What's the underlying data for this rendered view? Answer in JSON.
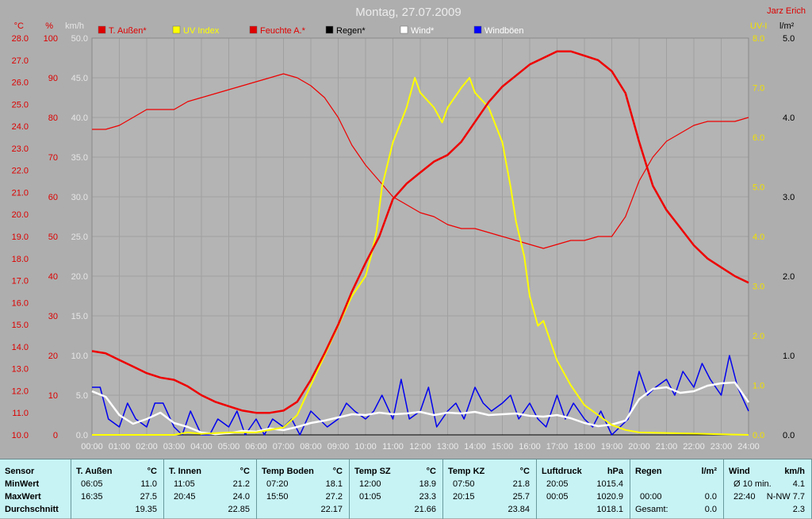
{
  "header": {
    "title": "Montag, 27.07.2009",
    "author": "Jarz Erich"
  },
  "axes": {
    "temp": {
      "unit": "°C",
      "ticks": [
        "28.0",
        "27.0",
        "26.0",
        "25.0",
        "24.0",
        "23.0",
        "22.0",
        "21.0",
        "20.0",
        "19.0",
        "18.0",
        "17.0",
        "16.0",
        "15.0",
        "14.0",
        "13.0",
        "12.0",
        "11.0",
        "10.0"
      ],
      "min": 10,
      "max": 28
    },
    "humidity": {
      "unit": "%",
      "ticks": [
        "100",
        "90",
        "80",
        "70",
        "60",
        "50",
        "40",
        "30",
        "20",
        "10",
        "0"
      ],
      "min": 0,
      "max": 100
    },
    "wind": {
      "unit": "km/h",
      "ticks": [
        "50.0",
        "45.0",
        "40.0",
        "35.0",
        "30.0",
        "25.0",
        "20.0",
        "15.0",
        "10.0",
        "5.0",
        "0.0"
      ],
      "min": 0,
      "max": 50
    },
    "uv": {
      "unit": "UV-I",
      "ticks": [
        "8.0",
        "7.0",
        "6.0",
        "5.0",
        "4.0",
        "3.0",
        "2.0",
        "1.0",
        "0.0"
      ],
      "min": 0,
      "max": 8
    },
    "rain": {
      "unit": "l/m²",
      "ticks": [
        "5.0",
        "4.0",
        "3.0",
        "2.0",
        "1.0",
        "0.0"
      ],
      "min": 0,
      "max": 5
    },
    "time_ticks": [
      "00:00",
      "01:00",
      "02:00",
      "03:00",
      "04:00",
      "05:00",
      "06:00",
      "07:00",
      "08:00",
      "09:00",
      "10:00",
      "11:00",
      "12:00",
      "13:00",
      "14:00",
      "15:00",
      "16:00",
      "17:00",
      "18:00",
      "19:00",
      "20:00",
      "21:00",
      "22:00",
      "23:00",
      "24:00"
    ]
  },
  "legend": [
    {
      "label": "T. Außen*",
      "color": "#e00000"
    },
    {
      "label": "UV Index",
      "color": "#ffff00"
    },
    {
      "label": "Feuchte A.*",
      "color": "#e00000"
    },
    {
      "label": "Regen*",
      "color": "#000000"
    },
    {
      "label": "Wind*",
      "color": "#ffffff"
    },
    {
      "label": "Windböen",
      "color": "#0000ff"
    }
  ],
  "colors": {
    "temp": "#ee0000",
    "humidity": "#ee0000",
    "uv": "#ffff00",
    "wind": "#ffffff",
    "gusts": "#0000ee",
    "rain": "#000000",
    "grid": "#a0a0a0",
    "plot_bg": "#b4b4b4"
  },
  "chart_data": {
    "type": "line",
    "x_unit": "hours",
    "xlim": [
      0,
      24
    ],
    "series": [
      {
        "name": "T. Außen*",
        "axis": "temp",
        "x": [
          0,
          0.5,
          1,
          1.5,
          2,
          2.5,
          3,
          3.5,
          4,
          4.5,
          5,
          5.5,
          6,
          6.5,
          7,
          7.5,
          8,
          8.5,
          9,
          9.5,
          10,
          10.5,
          11,
          11.5,
          12,
          12.5,
          13,
          13.5,
          14,
          14.5,
          15,
          15.5,
          16,
          16.5,
          17,
          17.5,
          18,
          18.5,
          19,
          19.5,
          20,
          20.5,
          21,
          21.5,
          22,
          22.5,
          23,
          23.5,
          24
        ],
        "y": [
          13.8,
          13.7,
          13.4,
          13.1,
          12.8,
          12.6,
          12.5,
          12.2,
          11.8,
          11.5,
          11.3,
          11.1,
          11.0,
          11.0,
          11.1,
          11.5,
          12.5,
          13.7,
          15.0,
          16.5,
          17.8,
          19.0,
          20.7,
          21.4,
          21.9,
          22.4,
          22.7,
          23.3,
          24.2,
          25.1,
          25.8,
          26.3,
          26.8,
          27.1,
          27.4,
          27.4,
          27.2,
          27.0,
          26.5,
          25.5,
          23.3,
          21.3,
          20.2,
          19.4,
          18.6,
          18.0,
          17.6,
          17.2,
          16.9
        ]
      },
      {
        "name": "Feuchte A.*",
        "axis": "humidity",
        "x": [
          0,
          0.5,
          1,
          1.5,
          2,
          2.5,
          3,
          3.5,
          4,
          4.5,
          5,
          5.5,
          6,
          6.5,
          7,
          7.5,
          8,
          8.5,
          9,
          9.5,
          10,
          10.5,
          11,
          11.5,
          12,
          12.5,
          13,
          13.5,
          14,
          14.5,
          15,
          15.5,
          16,
          16.5,
          17,
          17.5,
          18,
          18.5,
          19,
          19.5,
          20,
          20.5,
          21,
          21.5,
          22,
          22.5,
          23,
          23.5,
          24
        ],
        "y": [
          77,
          77,
          78,
          80,
          82,
          82,
          82,
          84,
          85,
          86,
          87,
          88,
          89,
          90,
          91,
          90,
          88,
          85,
          80,
          73,
          68,
          64,
          60,
          58,
          56,
          55,
          53,
          52,
          52,
          51,
          50,
          49,
          48,
          47,
          48,
          49,
          49,
          50,
          50,
          55,
          64,
          70,
          74,
          76,
          78,
          79,
          79,
          79,
          80
        ]
      },
      {
        "name": "UV Index",
        "axis": "uv",
        "x": [
          0,
          1,
          2,
          3,
          3.5,
          4,
          5,
          6,
          7,
          7.5,
          8,
          8.5,
          9,
          9.5,
          10,
          10.2,
          10.4,
          10.6,
          11,
          11.5,
          11.8,
          12,
          12.5,
          12.8,
          13,
          13.5,
          13.8,
          14,
          14.5,
          15,
          15.3,
          15.5,
          15.8,
          16,
          16.3,
          16.5,
          17,
          17.5,
          18,
          18.5,
          19,
          19.5,
          20,
          24
        ],
        "y": [
          0,
          0,
          0,
          0,
          0.05,
          0.02,
          0.05,
          0.05,
          0.15,
          0.4,
          1.0,
          1.6,
          2.2,
          2.8,
          3.2,
          3.6,
          4.1,
          5.0,
          5.9,
          6.6,
          7.2,
          6.9,
          6.6,
          6.3,
          6.6,
          7.0,
          7.2,
          6.9,
          6.6,
          5.9,
          5.0,
          4.3,
          3.6,
          2.8,
          2.2,
          2.3,
          1.5,
          1.0,
          0.6,
          0.4,
          0.2,
          0.1,
          0.05,
          0
        ]
      },
      {
        "name": "Wind*",
        "axis": "wind",
        "x": [
          0,
          0.5,
          1,
          1.5,
          2,
          2.5,
          3,
          3.5,
          4,
          4.5,
          5,
          5.5,
          6,
          6.5,
          7,
          7.5,
          8,
          8.5,
          9,
          9.5,
          10,
          10.5,
          11,
          11.5,
          12,
          12.5,
          13,
          13.5,
          14,
          14.5,
          15,
          15.5,
          16,
          16.5,
          17,
          17.5,
          18,
          18.5,
          19,
          19.5,
          20,
          20.5,
          21,
          21.5,
          22,
          22.5,
          23,
          23.5,
          24
        ],
        "y": [
          5.5,
          4.8,
          2.5,
          1.4,
          2.0,
          2.8,
          1.5,
          1.0,
          0.3,
          0.1,
          0.2,
          0.5,
          0.4,
          0.8,
          0.6,
          1.0,
          1.5,
          1.8,
          2.2,
          2.6,
          2.5,
          2.8,
          2.6,
          2.7,
          2.9,
          2.5,
          2.8,
          2.7,
          2.9,
          2.5,
          2.6,
          2.7,
          2.4,
          2.3,
          2.5,
          2.1,
          1.5,
          1.1,
          1.3,
          1.8,
          4.5,
          5.8,
          6.0,
          5.3,
          5.5,
          6.2,
          6.5,
          6.6,
          4.1
        ]
      },
      {
        "name": "Windböen",
        "axis": "wind",
        "x": [
          0,
          0.3,
          0.6,
          1,
          1.3,
          1.6,
          2,
          2.3,
          2.6,
          3,
          3.3,
          3.6,
          4,
          4.3,
          4.6,
          5,
          5.3,
          5.6,
          6,
          6.3,
          6.6,
          7,
          7.3,
          7.6,
          8,
          8.3,
          8.6,
          9,
          9.3,
          9.6,
          10,
          10.3,
          10.6,
          11,
          11.3,
          11.6,
          12,
          12.3,
          12.6,
          13,
          13.3,
          13.6,
          14,
          14.3,
          14.6,
          15,
          15.3,
          15.6,
          16,
          16.3,
          16.6,
          17,
          17.3,
          17.6,
          18,
          18.3,
          18.6,
          19,
          19.3,
          19.6,
          20,
          20.3,
          20.6,
          21,
          21.3,
          21.6,
          22,
          22.3,
          22.6,
          23,
          23.3,
          23.6,
          24
        ],
        "y": [
          6,
          6,
          2,
          1,
          4,
          2,
          1,
          4,
          4,
          1,
          0,
          3,
          0,
          0,
          2,
          1,
          3,
          0,
          2,
          0,
          2,
          1,
          2,
          0,
          3,
          2,
          1,
          2,
          4,
          3,
          2,
          3,
          5,
          2,
          7,
          2,
          3,
          6,
          1,
          3,
          4,
          2,
          6,
          4,
          3,
          4,
          5,
          2,
          4,
          2,
          1,
          5,
          2,
          4,
          2,
          1,
          3,
          0,
          1,
          2,
          8,
          5,
          6,
          7,
          5,
          8,
          6,
          9,
          7,
          5,
          10,
          6,
          3
        ]
      },
      {
        "name": "Regen*",
        "axis": "rain",
        "x": [
          0,
          24
        ],
        "y": [
          0,
          0
        ]
      }
    ]
  },
  "table": {
    "row_labels": [
      "Sensor",
      "MinWert",
      "MaxWert",
      "Durchschnitt"
    ],
    "columns": [
      {
        "name": "T. Außen",
        "unit": "°C",
        "min_time": "06:05",
        "min": "11.0",
        "max_time": "16:35",
        "max": "27.5",
        "avg": "19.35"
      },
      {
        "name": "T. Innen",
        "unit": "°C",
        "min_time": "11:05",
        "min": "21.2",
        "max_time": "20:45",
        "max": "24.0",
        "avg": "22.85"
      },
      {
        "name": "Temp Boden",
        "unit": "°C",
        "min_time": "07:20",
        "min": "18.1",
        "max_time": "15:50",
        "max": "27.2",
        "avg": "22.17"
      },
      {
        "name": "Temp SZ",
        "unit": "°C",
        "min_time": "12:00",
        "min": "18.9",
        "max_time": "01:05",
        "max": "23.3",
        "avg": "21.66"
      },
      {
        "name": "Temp KZ",
        "unit": "°C",
        "min_time": "07:50",
        "min": "21.8",
        "max_time": "20:15",
        "max": "25.7",
        "avg": "23.84"
      },
      {
        "name": "Luftdruck",
        "unit": "hPa",
        "min_time": "20:05",
        "min": "1015.4",
        "max_time": "00:05",
        "max": "1020.9",
        "avg": "1018.1"
      },
      {
        "name": "Regen",
        "unit": "l/m²",
        "min_time": "",
        "min": "",
        "max_time": "00:00",
        "max": "0.0",
        "avg_label": "Gesamt:",
        "avg": "0.0"
      },
      {
        "name": "Wind",
        "unit": "km/h",
        "min_time": "Ø 10 min.",
        "min": "4.1",
        "max_time": "22:40",
        "max": "N-NW 7.7",
        "avg": "2.3"
      }
    ]
  }
}
